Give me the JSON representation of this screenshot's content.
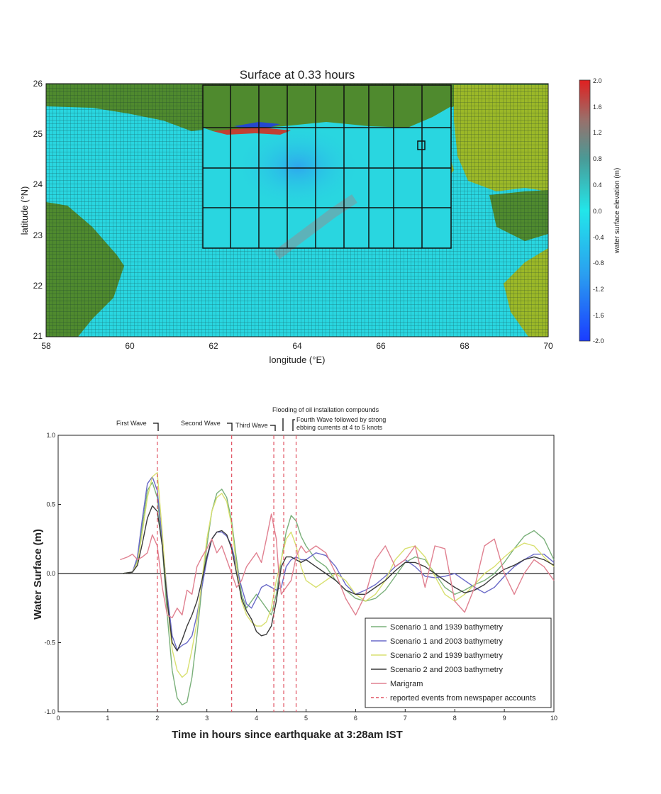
{
  "chart_data": [
    {
      "type": "heatmap",
      "title": "Surface at 0.33 hours",
      "xlabel": "longitude (°E)",
      "ylabel": "latitude (°N)",
      "xlim": [
        58,
        70
      ],
      "ylim": [
        21,
        26
      ],
      "xticks": [
        "58",
        "60",
        "62",
        "64",
        "66",
        "68",
        "70"
      ],
      "yticks": [
        "26",
        "25",
        "24",
        "23",
        "22",
        "21"
      ],
      "colorbar": {
        "label": "water surface elevation (m)",
        "range": [
          -2.0,
          2.0
        ],
        "ticks": [
          "2.0",
          "1.6",
          "1.2",
          "0.8",
          "0.4",
          "0.0",
          "-0.4",
          "-0.8",
          "-1.2",
          "-1.6",
          "-2.0"
        ]
      },
      "colors": {
        "ocean": "#29d6e0",
        "land": "#4f8a2e",
        "land_light": "#9bb828",
        "wave_positive": "#d03020",
        "wave_negative": "#2040e0"
      }
    },
    {
      "type": "line",
      "xlabel": "Time in hours since earthquake at 3:28am IST",
      "ylabel": "Water Surface (m)",
      "xlim": [
        0,
        10
      ],
      "ylim": [
        -1.0,
        1.0
      ],
      "xticks": [
        "0",
        "1",
        "2",
        "3",
        "4",
        "5",
        "6",
        "7",
        "8",
        "9",
        "10"
      ],
      "yticks": [
        "1.0",
        "0.5",
        "0.0",
        "-0.5",
        "-1.0"
      ],
      "legend_position": "lower-right",
      "series": [
        {
          "name": "Scenario 1 and 1939 bathymetry",
          "color": "#7ab07a",
          "x": [
            1.3,
            1.5,
            1.6,
            1.7,
            1.8,
            1.9,
            2.0,
            2.1,
            2.2,
            2.3,
            2.4,
            2.5,
            2.6,
            2.7,
            2.8,
            2.9,
            3.0,
            3.1,
            3.2,
            3.3,
            3.4,
            3.5,
            3.6,
            3.7,
            3.8,
            3.9,
            4.0,
            4.1,
            4.2,
            4.3,
            4.4,
            4.5,
            4.6,
            4.7,
            4.8,
            4.9,
            5.0,
            5.2,
            5.4,
            5.6,
            5.8,
            6.0,
            6.2,
            6.4,
            6.6,
            6.8,
            7.0,
            7.2,
            7.4,
            7.6,
            7.8,
            8.0,
            8.2,
            8.4,
            8.6,
            8.8,
            9.0,
            9.2,
            9.4,
            9.6,
            9.8,
            10.0
          ],
          "y": [
            0.0,
            0.01,
            0.1,
            0.35,
            0.6,
            0.66,
            0.55,
            0.2,
            -0.3,
            -0.7,
            -0.9,
            -0.95,
            -0.93,
            -0.75,
            -0.45,
            -0.1,
            0.2,
            0.45,
            0.58,
            0.61,
            0.55,
            0.38,
            0.1,
            -0.15,
            -0.25,
            -0.2,
            -0.15,
            -0.2,
            -0.25,
            -0.3,
            -0.15,
            0.1,
            0.3,
            0.42,
            0.38,
            0.27,
            0.2,
            0.1,
            0.05,
            -0.05,
            -0.12,
            -0.18,
            -0.2,
            -0.18,
            -0.12,
            -0.02,
            0.08,
            0.12,
            0.1,
            0.0,
            -0.1,
            -0.15,
            -0.12,
            -0.08,
            -0.05,
            0.0,
            0.08,
            0.18,
            0.27,
            0.31,
            0.25,
            0.1
          ]
        },
        {
          "name": "Scenario 1 and 2003 bathymetry",
          "color": "#6a6ac8",
          "x": [
            1.3,
            1.5,
            1.6,
            1.7,
            1.8,
            1.9,
            2.0,
            2.1,
            2.2,
            2.3,
            2.4,
            2.5,
            2.6,
            2.7,
            2.8,
            2.9,
            3.0,
            3.1,
            3.2,
            3.3,
            3.4,
            3.5,
            3.6,
            3.7,
            3.8,
            3.9,
            4.0,
            4.1,
            4.2,
            4.3,
            4.4,
            4.5,
            4.6,
            4.7,
            4.8,
            4.9,
            5.0,
            5.2,
            5.4,
            5.6,
            5.8,
            6.0,
            6.2,
            6.4,
            6.6,
            6.8,
            7.0,
            7.2,
            7.4,
            7.6,
            7.8,
            8.0,
            8.2,
            8.4,
            8.6,
            8.8,
            9.0,
            9.2,
            9.4,
            9.6,
            9.8,
            10.0
          ],
          "y": [
            0.0,
            0.01,
            0.12,
            0.4,
            0.65,
            0.7,
            0.6,
            0.25,
            -0.15,
            -0.45,
            -0.55,
            -0.52,
            -0.5,
            -0.45,
            -0.3,
            -0.1,
            0.1,
            0.25,
            0.3,
            0.3,
            0.27,
            0.2,
            0.05,
            -0.1,
            -0.22,
            -0.25,
            -0.18,
            -0.1,
            -0.08,
            -0.1,
            -0.12,
            -0.1,
            0.05,
            0.1,
            0.12,
            0.1,
            0.1,
            0.15,
            0.13,
            0.05,
            -0.08,
            -0.15,
            -0.12,
            -0.08,
            -0.02,
            0.05,
            0.1,
            0.05,
            -0.02,
            -0.03,
            -0.02,
            0.0,
            -0.05,
            -0.1,
            -0.14,
            -0.1,
            -0.02,
            0.05,
            0.1,
            0.14,
            0.14,
            0.08
          ]
        },
        {
          "name": "Scenario 2 and 1939  bathymetry",
          "color": "#d8e070",
          "x": [
            1.3,
            1.5,
            1.6,
            1.7,
            1.8,
            1.9,
            2.0,
            2.1,
            2.2,
            2.3,
            2.4,
            2.5,
            2.6,
            2.7,
            2.8,
            2.9,
            3.0,
            3.1,
            3.2,
            3.3,
            3.4,
            3.5,
            3.6,
            3.7,
            3.8,
            3.9,
            4.0,
            4.1,
            4.2,
            4.3,
            4.4,
            4.5,
            4.6,
            4.7,
            4.8,
            4.9,
            5.0,
            5.2,
            5.4,
            5.6,
            5.8,
            6.0,
            6.2,
            6.4,
            6.6,
            6.8,
            7.0,
            7.2,
            7.4,
            7.6,
            7.8,
            8.0,
            8.2,
            8.4,
            8.6,
            8.8,
            9.0,
            9.2,
            9.4,
            9.6,
            9.8,
            10.0
          ],
          "y": [
            0.0,
            0.01,
            0.08,
            0.3,
            0.55,
            0.7,
            0.73,
            0.3,
            -0.2,
            -0.55,
            -0.7,
            -0.75,
            -0.72,
            -0.55,
            -0.35,
            -0.05,
            0.25,
            0.45,
            0.55,
            0.58,
            0.52,
            0.35,
            0.05,
            -0.2,
            -0.3,
            -0.35,
            -0.38,
            -0.38,
            -0.35,
            -0.25,
            -0.05,
            0.1,
            0.25,
            0.3,
            0.2,
            0.05,
            -0.05,
            -0.1,
            -0.05,
            0.0,
            -0.05,
            -0.15,
            -0.2,
            -0.15,
            -0.05,
            0.1,
            0.18,
            0.2,
            0.12,
            -0.02,
            -0.15,
            -0.2,
            -0.15,
            -0.08,
            0.0,
            0.05,
            0.12,
            0.18,
            0.22,
            0.2,
            0.12,
            0.05
          ]
        },
        {
          "name": "Scenario 2 and 2003 bathymetry",
          "color": "#3a3a3a",
          "x": [
            1.3,
            1.5,
            1.6,
            1.7,
            1.8,
            1.9,
            2.0,
            2.1,
            2.2,
            2.3,
            2.4,
            2.5,
            2.6,
            2.7,
            2.8,
            2.9,
            3.0,
            3.1,
            3.2,
            3.3,
            3.4,
            3.5,
            3.6,
            3.7,
            3.8,
            3.9,
            4.0,
            4.1,
            4.2,
            4.3,
            4.4,
            4.5,
            4.6,
            4.7,
            4.8,
            4.9,
            5.0,
            5.2,
            5.4,
            5.6,
            5.8,
            6.0,
            6.2,
            6.4,
            6.6,
            6.8,
            7.0,
            7.2,
            7.4,
            7.6,
            7.8,
            8.0,
            8.2,
            8.4,
            8.6,
            8.8,
            9.0,
            9.2,
            9.4,
            9.6,
            9.8,
            10.0
          ],
          "y": [
            0.0,
            0.01,
            0.06,
            0.22,
            0.4,
            0.49,
            0.45,
            0.2,
            -0.2,
            -0.5,
            -0.56,
            -0.48,
            -0.38,
            -0.3,
            -0.2,
            -0.05,
            0.12,
            0.25,
            0.3,
            0.31,
            0.28,
            0.18,
            0.0,
            -0.18,
            -0.27,
            -0.33,
            -0.42,
            -0.45,
            -0.44,
            -0.38,
            -0.2,
            0.05,
            0.12,
            0.12,
            0.1,
            0.08,
            0.1,
            0.05,
            0.0,
            -0.05,
            -0.12,
            -0.15,
            -0.15,
            -0.1,
            -0.05,
            0.02,
            0.08,
            0.08,
            0.05,
            0.0,
            -0.05,
            -0.1,
            -0.14,
            -0.12,
            -0.08,
            -0.02,
            0.03,
            0.06,
            0.1,
            0.12,
            0.1,
            0.06
          ]
        },
        {
          "name": "Marigram",
          "color": "#e08090",
          "x": [
            1.25,
            1.4,
            1.5,
            1.6,
            1.7,
            1.8,
            1.9,
            2.0,
            2.1,
            2.2,
            2.3,
            2.4,
            2.5,
            2.6,
            2.7,
            2.8,
            2.9,
            3.0,
            3.1,
            3.2,
            3.3,
            3.4,
            3.5,
            3.6,
            3.7,
            3.8,
            3.9,
            4.0,
            4.1,
            4.2,
            4.3,
            4.4,
            4.45,
            4.5,
            4.6,
            4.7,
            4.8,
            4.9,
            5.0,
            5.2,
            5.4,
            5.6,
            5.8,
            6.0,
            6.2,
            6.4,
            6.6,
            6.8,
            7.0,
            7.2,
            7.4,
            7.6,
            7.8,
            8.0,
            8.2,
            8.4,
            8.6,
            8.8,
            9.0,
            9.2,
            9.4,
            9.6,
            9.8,
            10.0
          ],
          "y": [
            0.1,
            0.12,
            0.14,
            0.1,
            0.12,
            0.15,
            0.28,
            0.2,
            -0.1,
            -0.3,
            -0.32,
            -0.25,
            -0.3,
            -0.12,
            -0.15,
            0.05,
            0.12,
            0.18,
            0.25,
            0.15,
            0.2,
            0.1,
            0.0,
            -0.1,
            -0.05,
            0.05,
            0.1,
            0.15,
            0.08,
            0.25,
            0.43,
            0.25,
            0.0,
            -0.15,
            -0.1,
            -0.05,
            0.12,
            0.2,
            0.15,
            0.2,
            0.15,
            0.0,
            -0.18,
            -0.3,
            -0.15,
            0.1,
            0.2,
            0.05,
            0.1,
            0.2,
            -0.1,
            0.2,
            0.18,
            -0.2,
            -0.28,
            -0.1,
            0.2,
            0.25,
            0.0,
            -0.15,
            0.0,
            0.1,
            0.05,
            -0.05
          ]
        },
        {
          "name": "reported events from newspaper accounts",
          "color": "#e05060",
          "dashed": true,
          "x": [
            2.0,
            3.5,
            4.35,
            4.55,
            4.8
          ]
        }
      ],
      "annotations": [
        {
          "text": "First Wave",
          "x": 2.0
        },
        {
          "text": "Second Wave",
          "x": 3.5
        },
        {
          "text": "Third Wave",
          "x": 4.35
        },
        {
          "text": "Flooding of oil installation compounds",
          "x": 4.55
        },
        {
          "text": "Fourth Wave followed by strong",
          "text2": "ebbing currents at 4 to 5 knots",
          "x": 4.8
        }
      ]
    }
  ]
}
